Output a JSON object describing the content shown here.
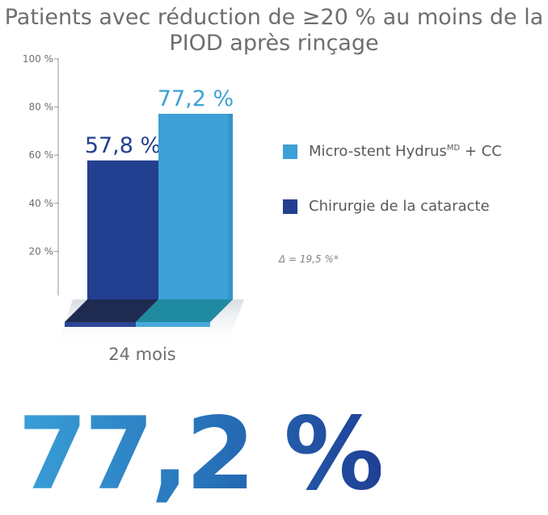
{
  "title": "Patients avec réduction de ≥20 % au moins de la PIOD après rinçage",
  "chart_data": {
    "type": "bar",
    "categories": [
      "24 mois"
    ],
    "series": [
      {
        "name": "Chirurgie de la cataracte",
        "values": [
          57.8
        ],
        "label": "57,8 %",
        "color": "#233f8f"
      },
      {
        "name_main": "Micro-stent Hydrus",
        "name_sup": "MD",
        "name_tail": " + CC",
        "name": "Micro-stent HydrusMD + CC",
        "values": [
          77.2
        ],
        "label": "77,2 %",
        "color": "#3da0d6"
      }
    ],
    "yticks": [
      "100 %",
      "80 %",
      "60 %",
      "40 %",
      "20 %"
    ],
    "ytick_values": [
      100,
      80,
      60,
      40,
      20
    ],
    "ylim": [
      0,
      100
    ],
    "annotation": "Δ = 19,5 %*"
  },
  "highlight": "77,2 %",
  "colors": {
    "hydrus": "#3da0d6",
    "cataract": "#233f8f",
    "axis_text": "#6d6e71"
  }
}
